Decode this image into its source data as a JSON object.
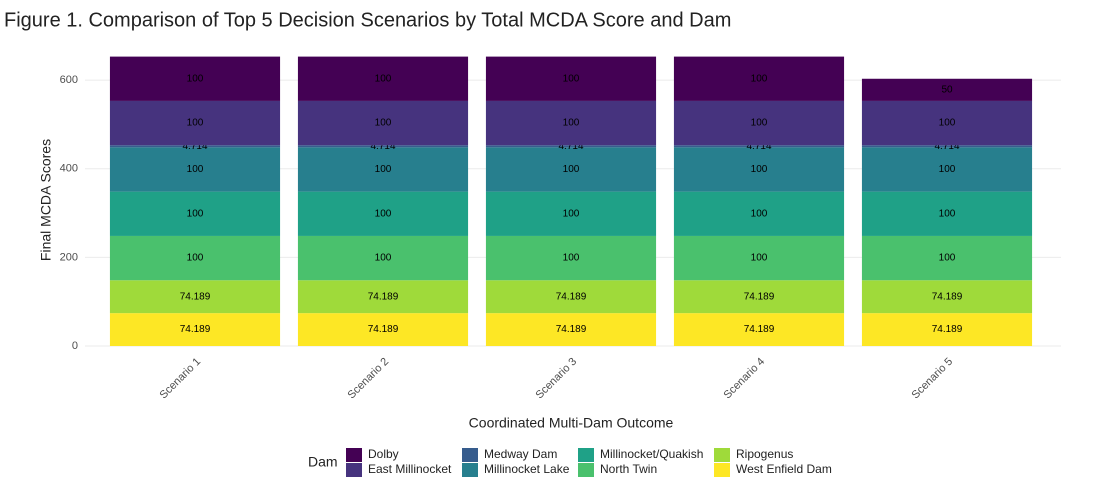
{
  "chart_data": {
    "type": "stacked_bar",
    "title": "Figure 1. Comparison of Top 5 Decision Scenarios by Total MCDA Score and Dam",
    "x_label": "Coordinated Multi-Dam Outcome",
    "y_label": "Final MCDA Scores",
    "legend_title": "Dam",
    "categories": [
      "Scenario 1",
      "Scenario 2",
      "Scenario 3",
      "Scenario 4",
      "Scenario 5"
    ],
    "series": [
      {
        "name": "Dolby",
        "color": "#440154",
        "values": [
          100,
          100,
          100,
          100,
          50
        ]
      },
      {
        "name": "East Millinocket",
        "color": "#46337e",
        "values": [
          100,
          100,
          100,
          100,
          100
        ]
      },
      {
        "name": "Medway Dam",
        "color": "#365c8d",
        "values": [
          4.714,
          4.714,
          4.714,
          4.714,
          4.714
        ]
      },
      {
        "name": "Millinocket Lake",
        "color": "#277f8e",
        "values": [
          100,
          100,
          100,
          100,
          100
        ]
      },
      {
        "name": "Millinocket/Quakish",
        "color": "#1fa187",
        "values": [
          100,
          100,
          100,
          100,
          100
        ]
      },
      {
        "name": "North Twin",
        "color": "#4ac16d",
        "values": [
          100,
          100,
          100,
          100,
          100
        ]
      },
      {
        "name": "Ripogenus",
        "color": "#9fda3a",
        "values": [
          74.189,
          74.189,
          74.189,
          74.189,
          74.189
        ]
      },
      {
        "name": "West Enfield Dam",
        "color": "#fde725",
        "values": [
          74.189,
          74.189,
          74.189,
          74.189,
          74.189
        ]
      }
    ],
    "ylim": [
      -9,
      668
    ],
    "yticks": [
      0,
      200,
      400,
      600
    ],
    "grid": true,
    "legend": "bottom"
  }
}
